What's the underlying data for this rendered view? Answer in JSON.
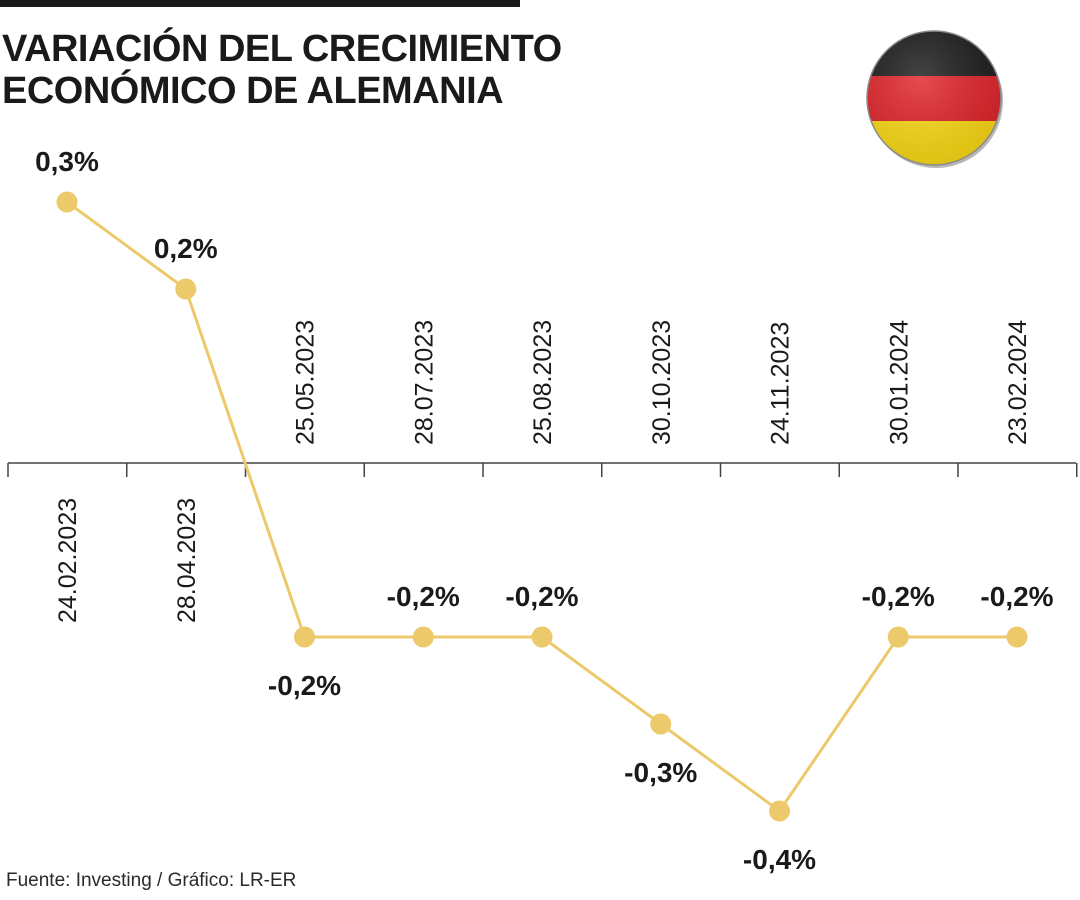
{
  "title_lines": [
    "VARIACIÓN DEL CRECIMIENTO",
    "ECONÓMICO DE ALEMANIA"
  ],
  "source": "Fuente: Investing / Gráfico: LR-ER",
  "flag": {
    "name": "germany-flag-icon",
    "colors": [
      "#1c1c1c",
      "#e1242a",
      "#fddb15"
    ]
  },
  "colors": {
    "line": "#ecc96a",
    "axis": "#444444",
    "text": "#1a1a1a"
  },
  "chart_data": {
    "type": "line",
    "title": "VARIACIÓN DEL CRECIMIENTO ECONÓMICO DE ALEMANIA",
    "categories": [
      "24.02.2023",
      "28.04.2023",
      "25.05.2023",
      "28.07.2023",
      "25.08.2023",
      "30.10.2023",
      "24.11.2023",
      "30.01.2024",
      "23.02.2024"
    ],
    "values": [
      0.3,
      0.2,
      -0.2,
      -0.2,
      -0.2,
      -0.3,
      -0.4,
      -0.2,
      -0.2
    ],
    "value_labels": [
      "0,3%",
      "0,2%",
      "-0,2%",
      "-0,2%",
      "-0,2%",
      "-0,3%",
      "-0,4%",
      "-0,2%",
      "-0,2%"
    ],
    "xlabel": "",
    "ylabel": "",
    "ylim": [
      -0.45,
      0.35
    ],
    "grid": false,
    "legend": "none"
  }
}
